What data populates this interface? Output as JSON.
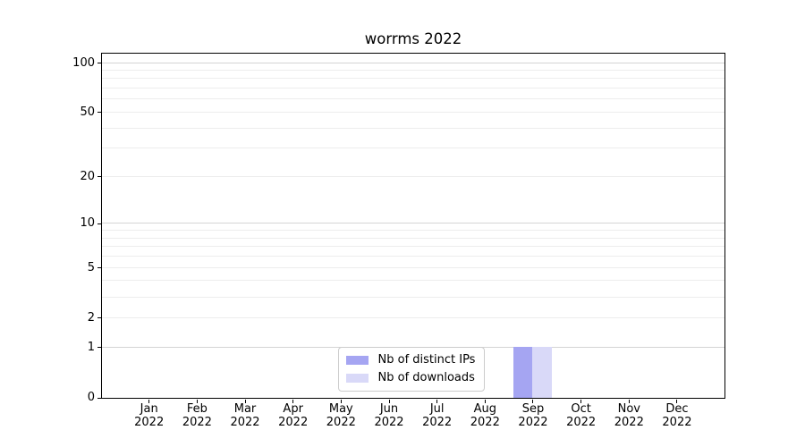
{
  "chart_data": {
    "type": "bar",
    "title": "worrms 2022",
    "categories": [
      "Jan 2022",
      "Feb 2022",
      "Mar 2022",
      "Apr 2022",
      "May 2022",
      "Jun 2022",
      "Jul 2022",
      "Aug 2022",
      "Sep 2022",
      "Oct 2022",
      "Nov 2022",
      "Dec 2022"
    ],
    "series": [
      {
        "name": "Nb of distinct IPs",
        "color": "#a5a5f2",
        "values": [
          0,
          0,
          0,
          0,
          0,
          0,
          0,
          0,
          1,
          0,
          0,
          0
        ]
      },
      {
        "name": "Nb of downloads",
        "color": "#d9d9f8",
        "values": [
          0,
          0,
          0,
          0,
          0,
          0,
          0,
          0,
          1,
          0,
          0,
          0
        ]
      }
    ],
    "xlabel": "",
    "ylabel": "",
    "yscale": "log1p",
    "ylim": [
      0,
      114
    ],
    "yticks": [
      0,
      1,
      2,
      5,
      10,
      20,
      50,
      100
    ],
    "major_gridlines": [
      1,
      10,
      100
    ],
    "minor_gridlines": [
      2,
      3,
      4,
      5,
      6,
      7,
      8,
      9,
      20,
      30,
      40,
      50,
      60,
      70,
      80,
      90
    ],
    "grid": true,
    "legend_position": "lower center"
  },
  "colors": {
    "major_grid": "#d4d4d4",
    "minor_grid": "#ededed",
    "spine": "#000000",
    "text": "#000000",
    "legend_border": "#cccccc",
    "legend_background": "#ffffff"
  }
}
